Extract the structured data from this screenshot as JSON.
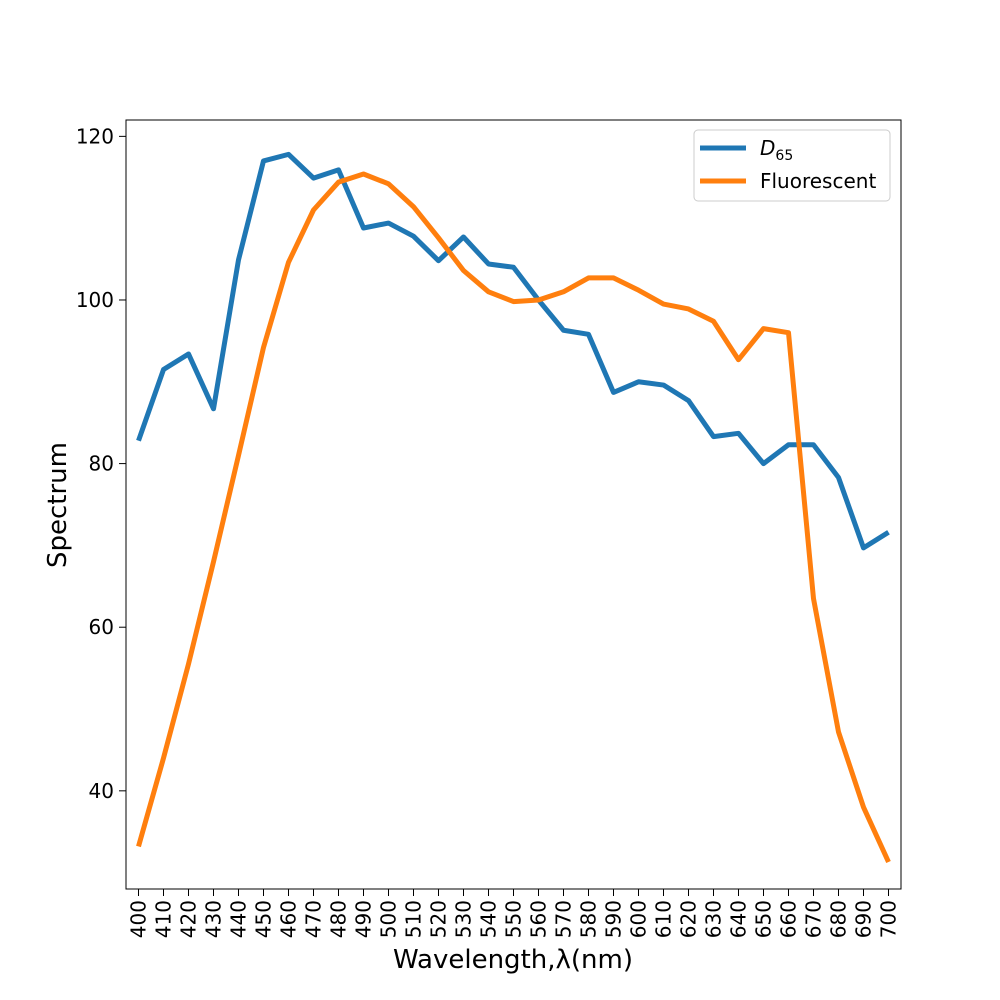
{
  "chart_data": {
    "type": "line",
    "title": "",
    "xlabel": "Wavelength,λ(nm)",
    "ylabel": "Spectrum",
    "x": [
      400,
      410,
      420,
      430,
      440,
      450,
      460,
      470,
      480,
      490,
      500,
      510,
      520,
      530,
      540,
      550,
      560,
      570,
      580,
      590,
      600,
      610,
      620,
      630,
      640,
      650,
      660,
      670,
      680,
      690,
      700
    ],
    "xlim": [
      395,
      705
    ],
    "ylim": [
      28,
      122
    ],
    "yticks": [
      40,
      60,
      80,
      100,
      120
    ],
    "grid": false,
    "legend_position": "top-right",
    "series": [
      {
        "name": "D65",
        "name_base": "D",
        "name_sub": "65",
        "color": "#1f77b4",
        "values": [
          82.8,
          91.5,
          93.4,
          86.7,
          104.9,
          117.0,
          117.8,
          114.9,
          115.9,
          108.8,
          109.4,
          107.8,
          104.8,
          107.7,
          104.4,
          104.0,
          100.0,
          96.3,
          95.8,
          88.7,
          90.0,
          89.6,
          87.7,
          83.3,
          83.7,
          80.0,
          82.3,
          82.3,
          78.3,
          69.7,
          71.6
        ]
      },
      {
        "name": "Fluorescent",
        "color": "#ff7f0e",
        "values": [
          33.2,
          44.0,
          55.5,
          68.0,
          81.0,
          94.2,
          104.6,
          111.0,
          114.4,
          115.4,
          114.2,
          111.4,
          107.6,
          103.6,
          101.0,
          99.8,
          100.0,
          101.0,
          102.7,
          102.7,
          101.2,
          99.5,
          98.9,
          97.4,
          92.7,
          96.5,
          96.0,
          63.5,
          47.2,
          38.0,
          31.3
        ]
      }
    ]
  }
}
